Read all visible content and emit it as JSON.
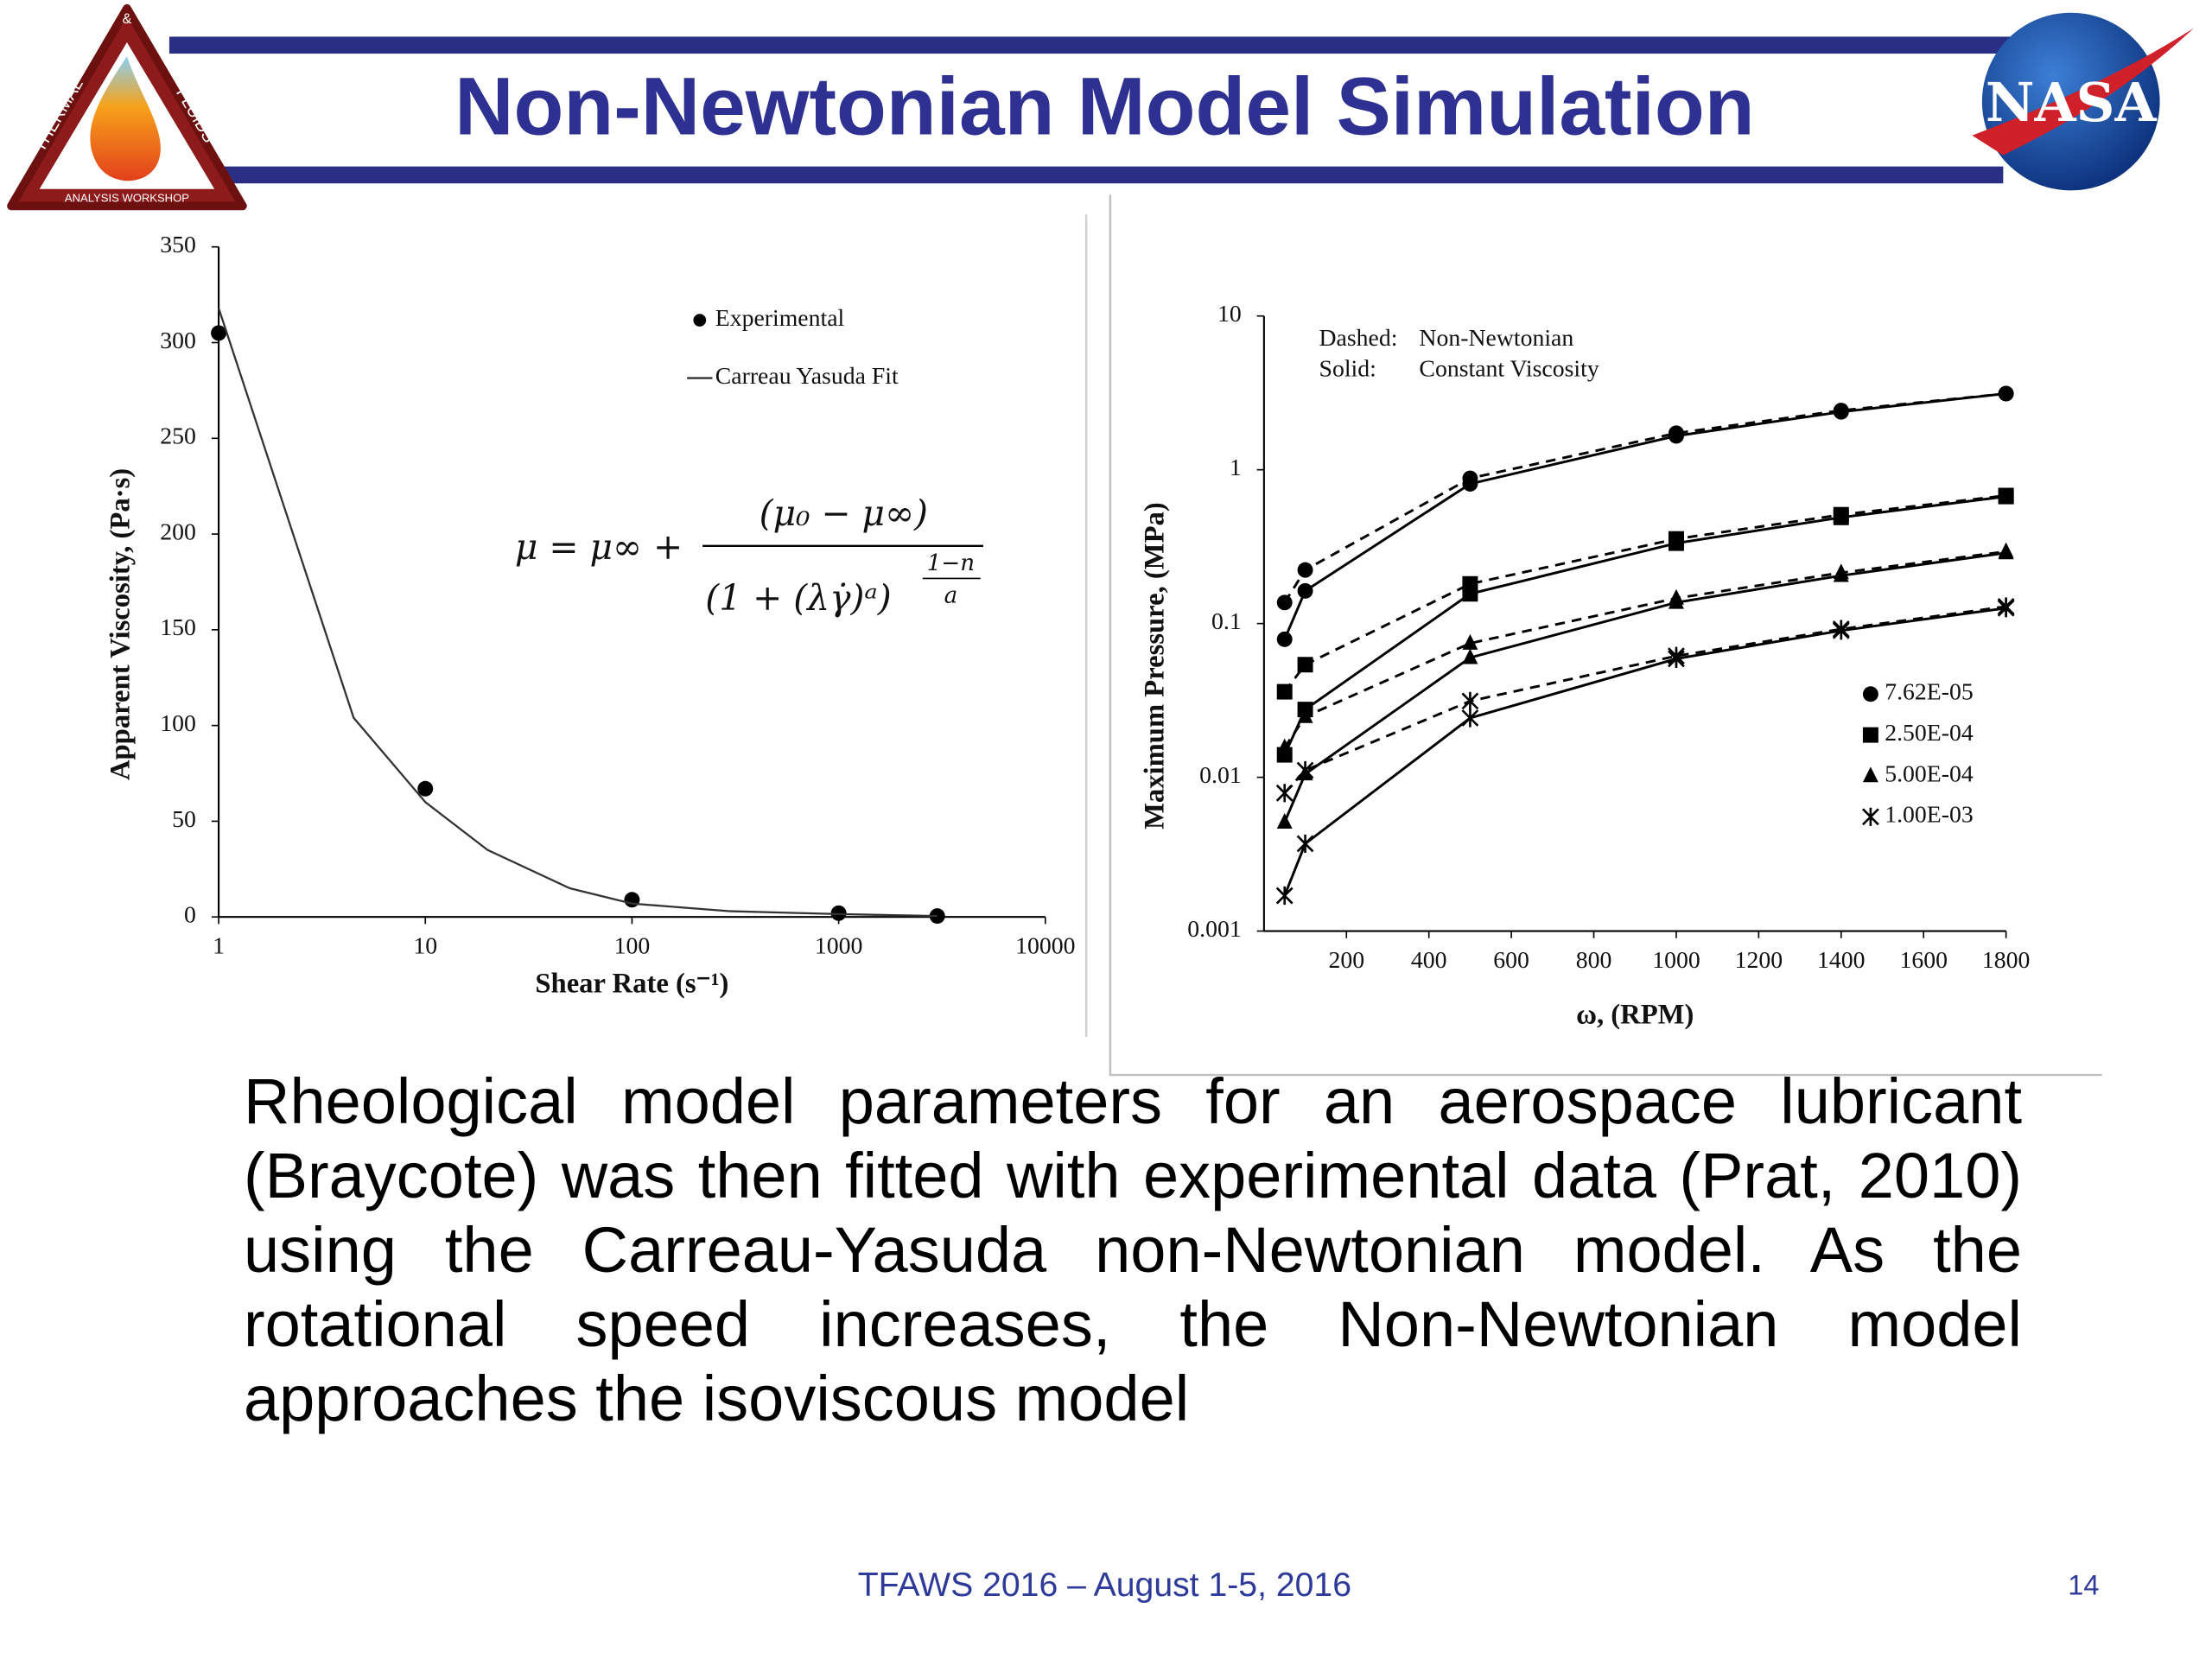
{
  "slide": {
    "title": "Non-Newtonian Model Simulation",
    "body": "Rheological model parameters for an aerospace lubricant (Braycote) was then fitted with experimental data (Prat, 2010) using the Carreau-Yasuda non-Newtonian model. As the rotational speed increases, the Non-Newtonian model approaches the isoviscous model",
    "footer": "TFAWS 2016 – August 1-5, 2016",
    "page_number": "14",
    "logos": {
      "thermal": "THERMAL",
      "ampersand": "&",
      "fluids": "FLUIDS",
      "workshop": "ANALYSIS WORKSHOP",
      "nasa": "NASA"
    }
  },
  "chart_data": [
    {
      "type": "scatter",
      "xlabel": "Shear Rate (s⁻¹)",
      "ylabel": "Apparent Viscosity, (Pa·s)",
      "xscale": "log",
      "xlim": [
        1,
        10000
      ],
      "xticks": [
        1,
        10,
        100,
        1000,
        10000
      ],
      "ylim": [
        0,
        350
      ],
      "yticks": [
        0,
        50,
        100,
        150,
        200,
        250,
        300,
        350
      ],
      "series": [
        {
          "name": "Experimental",
          "mode": "markers",
          "color": "#000000",
          "x": [
            1,
            10,
            100,
            1000,
            3000
          ],
          "values": [
            305,
            67,
            9,
            2,
            0.5
          ]
        },
        {
          "name": "Carreau Yasuda Fit",
          "mode": "line",
          "color": "#333333",
          "x": [
            1,
            4.5,
            10,
            20,
            50,
            100,
            300,
            1000,
            3000
          ],
          "values": [
            318,
            104,
            60,
            35,
            15,
            7,
            3,
            1.5,
            0.5
          ]
        }
      ],
      "equation": {
        "lhs": "μ = μ∞ +",
        "numerator": "(μ₀ − μ∞)",
        "denominator": "(1 + (λγ̇)ᵃ)",
        "exponent_numerator": "1−n",
        "exponent_denominator": "a"
      }
    },
    {
      "type": "line",
      "xlabel": "ω, (RPM)",
      "ylabel": "Maximum Pressure, (MPa)",
      "xlim": [
        0,
        1800
      ],
      "xticks": [
        200,
        400,
        600,
        800,
        1000,
        1200,
        1400,
        1600,
        1800
      ],
      "yscale": "log",
      "ylim": [
        0.001,
        10
      ],
      "yticks": [
        0.001,
        0.01,
        0.1,
        1,
        10
      ],
      "annotations": [
        [
          "Dashed:",
          "Non-Newtonian"
        ],
        [
          "Solid:",
          "Constant Viscosity"
        ]
      ],
      "x": [
        50,
        100,
        500,
        1000,
        1400,
        1800
      ],
      "series": [
        {
          "name": "7.62E-05",
          "marker": "circle",
          "color": "#000000",
          "values": [
            0.079,
            0.163,
            0.81,
            1.66,
            2.38,
            3.13
          ],
          "non_newtonian_values": [
            0.137,
            0.223,
            0.88,
            1.73,
            2.43,
            3.13
          ]
        },
        {
          "name": "2.50E-04",
          "marker": "square",
          "color": "#000000",
          "values": [
            0.014,
            0.0276,
            0.156,
            0.333,
            0.49,
            0.67
          ],
          "non_newtonian_values": [
            0.036,
            0.054,
            0.181,
            0.355,
            0.51,
            0.68
          ]
        },
        {
          "name": "5.00E-04",
          "marker": "triangle",
          "color": "#000000",
          "values": [
            0.0051,
            0.0105,
            0.06,
            0.137,
            0.205,
            0.288
          ],
          "non_newtonian_values": [
            0.0156,
            0.0248,
            0.0744,
            0.146,
            0.214,
            0.294
          ]
        },
        {
          "name": "1.00E-03",
          "marker": "star",
          "color": "#000000",
          "values": [
            0.0017,
            0.0037,
            0.0243,
            0.059,
            0.09,
            0.126
          ],
          "non_newtonian_values": [
            0.0079,
            0.0111,
            0.0313,
            0.0615,
            0.092,
            0.129
          ]
        }
      ]
    }
  ]
}
